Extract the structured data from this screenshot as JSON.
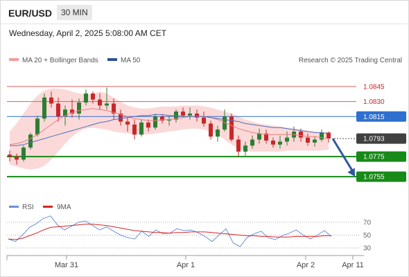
{
  "header": {
    "symbol": "EUR/USD",
    "interval": "30 MIN",
    "datetime": "Wednesday, April 2, 2025 5:08:00 AM CET"
  },
  "legend": {
    "ma20_bb": "MA 20 + Bollinger Bands",
    "ma50": "MA 50",
    "credit": "Research © 2025 Trading Central"
  },
  "rsi_legend": {
    "rsi": "RSI",
    "ma9": "9MA"
  },
  "colors": {
    "up": "#2e7d32",
    "down": "#c62828",
    "resistance": "#e05a5a",
    "support": "#178a17",
    "pivot": "#2f6fcf",
    "current": "#404040",
    "bb_fill": "#fbd9d9",
    "ma20": "#e88080",
    "ma50": "#4d6fb8",
    "rsi": "#6b8fd6",
    "rsi_ma": "#d62424",
    "arrow": "#2f57a0"
  },
  "chart_data": [
    {
      "type": "candlestick",
      "title": "EUR/USD",
      "interval": "30 MIN",
      "ylim": [
        1.0735,
        1.0865
      ],
      "x_ticks": [
        "Mar 31",
        "Apr 1",
        "Apr 2",
        "Apr 11"
      ],
      "levels": [
        {
          "value": 1.0845,
          "label": "1.0845",
          "kind": "resistance"
        },
        {
          "value": 1.083,
          "label": "1.0830",
          "kind": "resistance"
        },
        {
          "value": 1.0815,
          "label": "1.0815",
          "kind": "pivot"
        },
        {
          "value": 1.0793,
          "label": "1.0793",
          "kind": "current"
        },
        {
          "value": 1.0775,
          "label": "1.0775",
          "kind": "support"
        },
        {
          "value": 1.0755,
          "label": "1.0755",
          "kind": "support"
        }
      ],
      "forecast": {
        "from": 1.0793,
        "to": 1.0755
      },
      "series": [
        {
          "name": "MA 20",
          "values": [
            1.0787,
            1.0788,
            1.079,
            1.0793,
            1.0797,
            1.0802,
            1.0807,
            1.0812,
            1.0816,
            1.0819,
            1.0821,
            1.0822,
            1.0823,
            1.0822,
            1.0821,
            1.0819,
            1.0817,
            1.0815,
            1.0813,
            1.0812,
            1.0811,
            1.0811,
            1.0812,
            1.0812,
            1.0813,
            1.0814,
            1.0815,
            1.0815,
            1.0815,
            1.0814,
            1.0812,
            1.0809,
            1.0806,
            1.0803,
            1.0801,
            1.0799,
            1.0798,
            1.0797,
            1.0797,
            1.0797,
            1.0797,
            1.0797,
            1.0796,
            1.0795,
            1.0795,
            1.0794,
            1.0793
          ]
        },
        {
          "name": "MA 50",
          "values": [
            1.0786,
            1.0786,
            1.0787,
            1.0789,
            1.0791,
            1.0793,
            1.0795,
            1.0797,
            1.0799,
            1.0801,
            1.0803,
            1.0805,
            1.0807,
            1.0809,
            1.081,
            1.0812,
            1.0813,
            1.0814,
            1.0815,
            1.0816,
            1.0816,
            1.0817,
            1.0817,
            1.0816,
            1.0816,
            1.0815,
            1.0815,
            1.0815,
            1.0815,
            1.0814,
            1.0813,
            1.0812,
            1.0811,
            1.081,
            1.0808,
            1.0807,
            1.0806,
            1.0805,
            1.0804,
            1.0804,
            1.0803,
            1.0802,
            1.0801,
            1.08,
            1.0799,
            1.0799,
            1.0798
          ]
        },
        {
          "name": "BB Upper",
          "values": [
            1.08,
            1.0808,
            1.0818,
            1.0828,
            1.0836,
            1.0841,
            1.0843,
            1.0843,
            1.0842,
            1.084,
            1.0838,
            1.0837,
            1.0838,
            1.084,
            1.0838,
            1.0834,
            1.083,
            1.0826,
            1.0824,
            1.0823,
            1.0823,
            1.0824,
            1.0825,
            1.0825,
            1.0825,
            1.0826,
            1.0826,
            1.0826,
            1.0825,
            1.0824,
            1.0822,
            1.082,
            1.0818,
            1.0815,
            1.0812,
            1.081,
            1.0808,
            1.0807,
            1.0806,
            1.0805,
            1.0804,
            1.0803,
            1.0802,
            1.0801,
            1.08,
            1.0799,
            1.0799
          ]
        },
        {
          "name": "BB Lower",
          "values": [
            1.0767,
            1.0765,
            1.0763,
            1.0762,
            1.0763,
            1.0766,
            1.0772,
            1.078,
            1.0788,
            1.0795,
            1.08,
            1.0803,
            1.0804,
            1.0803,
            1.0802,
            1.08,
            1.0799,
            1.0798,
            1.0797,
            1.0797,
            1.0797,
            1.0798,
            1.0799,
            1.08,
            1.0801,
            1.0802,
            1.0803,
            1.0803,
            1.0802,
            1.08,
            1.0797,
            1.0792,
            1.0787,
            1.0783,
            1.0781,
            1.078,
            1.078,
            1.078,
            1.078,
            1.078,
            1.0781,
            1.0781,
            1.0781,
            1.0781,
            1.0781,
            1.0781,
            1.0782
          ]
        }
      ],
      "candles": [
        [
          1.0777,
          1.0781,
          1.077,
          1.0775
        ],
        [
          1.0775,
          1.0778,
          1.0767,
          1.0772
        ],
        [
          1.0772,
          1.0786,
          1.077,
          1.0784
        ],
        [
          1.0784,
          1.0799,
          1.0782,
          1.0797
        ],
        [
          1.0797,
          1.0816,
          1.0795,
          1.0813
        ],
        [
          1.0813,
          1.0838,
          1.081,
          1.0834
        ],
        [
          1.0834,
          1.084,
          1.0824,
          1.0828
        ],
        [
          1.0828,
          1.0834,
          1.081,
          1.0815
        ],
        [
          1.0815,
          1.0826,
          1.0806,
          1.0822
        ],
        [
          1.0822,
          1.0832,
          1.0814,
          1.0818
        ],
        [
          1.0818,
          1.0833,
          1.0812,
          1.0829
        ],
        [
          1.0829,
          1.0842,
          1.0826,
          1.0838
        ],
        [
          1.0838,
          1.084,
          1.0828,
          1.0832
        ],
        [
          1.0832,
          1.0838,
          1.0822,
          1.0826
        ],
        [
          1.0826,
          1.0844,
          1.0822,
          1.0828
        ],
        [
          1.0828,
          1.0833,
          1.0812,
          1.0818
        ],
        [
          1.0818,
          1.0822,
          1.0806,
          1.081
        ],
        [
          1.081,
          1.0815,
          1.08,
          1.0807
        ],
        [
          1.0807,
          1.0812,
          1.0792,
          1.0797
        ],
        [
          1.0797,
          1.0812,
          1.0795,
          1.0809
        ],
        [
          1.0809,
          1.0812,
          1.08,
          1.0804
        ],
        [
          1.0804,
          1.0818,
          1.0802,
          1.0815
        ],
        [
          1.0815,
          1.0817,
          1.0808,
          1.0811
        ],
        [
          1.0811,
          1.0816,
          1.0806,
          1.0812
        ],
        [
          1.0812,
          1.0822,
          1.0809,
          1.082
        ],
        [
          1.082,
          1.0824,
          1.0814,
          1.0816
        ],
        [
          1.0816,
          1.0824,
          1.0812,
          1.0818
        ],
        [
          1.0818,
          1.0822,
          1.081,
          1.0814
        ],
        [
          1.0814,
          1.082,
          1.0805,
          1.0808
        ],
        [
          1.0808,
          1.0811,
          1.0792,
          1.0795
        ],
        [
          1.0795,
          1.0806,
          1.079,
          1.0802
        ],
        [
          1.0802,
          1.0822,
          1.08,
          1.0815
        ],
        [
          1.0815,
          1.0818,
          1.079,
          1.0792
        ],
        [
          1.0792,
          1.0796,
          1.0775,
          1.078
        ],
        [
          1.078,
          1.079,
          1.0776,
          1.0786
        ],
        [
          1.0786,
          1.0796,
          1.0783,
          1.0792
        ],
        [
          1.0792,
          1.0803,
          1.0788,
          1.0798
        ],
        [
          1.0798,
          1.0802,
          1.0788,
          1.0791
        ],
        [
          1.0791,
          1.0794,
          1.0784,
          1.0787
        ],
        [
          1.0787,
          1.0796,
          1.0783,
          1.079
        ],
        [
          1.079,
          1.08,
          1.0786,
          1.0794
        ],
        [
          1.0794,
          1.0805,
          1.079,
          1.08
        ],
        [
          1.08,
          1.0803,
          1.079,
          1.0794
        ],
        [
          1.0794,
          1.0798,
          1.0786,
          1.0789
        ],
        [
          1.0789,
          1.0795,
          1.0785,
          1.0792
        ],
        [
          1.0792,
          1.0802,
          1.079,
          1.0799
        ],
        [
          1.0799,
          1.08,
          1.0789,
          1.0793
        ]
      ]
    },
    {
      "type": "line",
      "title": "RSI",
      "ylim": [
        20,
        85
      ],
      "y_ticks": [
        70,
        50,
        30
      ],
      "series": [
        {
          "name": "RSI",
          "values": [
            44,
            40,
            50,
            62,
            68,
            76,
            80,
            66,
            58,
            64,
            70,
            72,
            65,
            58,
            63,
            56,
            50,
            46,
            44,
            56,
            48,
            58,
            52,
            53,
            60,
            57,
            58,
            54,
            48,
            40,
            50,
            60,
            38,
            32,
            46,
            52,
            56,
            46,
            43,
            49,
            53,
            58,
            50,
            44,
            50,
            57,
            48
          ]
        },
        {
          "name": "9MA",
          "values": [
            44,
            43,
            45,
            49,
            53,
            58,
            62,
            63,
            64,
            65,
            66,
            67,
            67,
            66,
            65,
            63,
            61,
            59,
            57,
            56,
            55,
            54,
            54,
            53,
            54,
            54,
            55,
            55,
            55,
            54,
            53,
            52,
            51,
            50,
            49,
            49,
            48,
            48,
            47,
            47,
            47,
            48,
            48,
            48,
            48,
            49,
            49
          ]
        }
      ]
    }
  ]
}
